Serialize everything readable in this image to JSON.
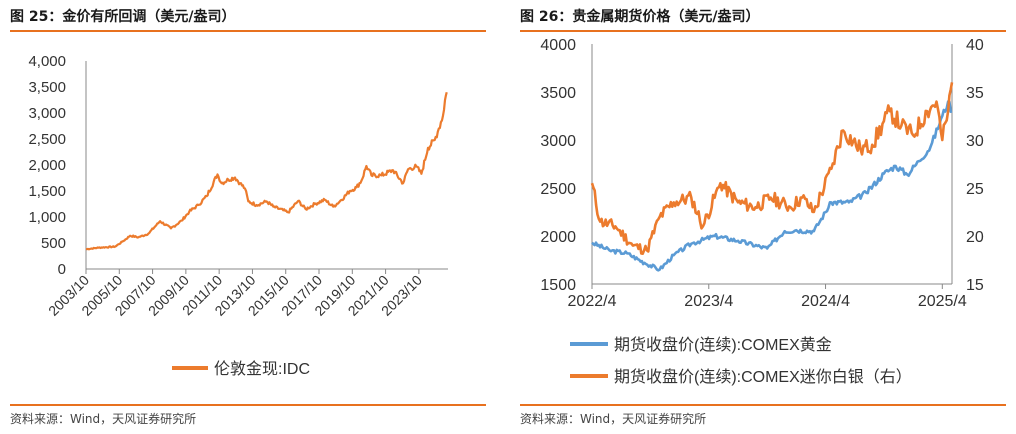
{
  "left": {
    "title": "图 25：金价有所回调（美元/盎司）",
    "source": "资料来源：Wind，天风证券研究所",
    "chart_data": {
      "type": "line",
      "title": "金价有所回调（美元/盎司）",
      "ylim": [
        0,
        4000
      ],
      "yticks": [
        0,
        500,
        1000,
        1500,
        2000,
        2500,
        3000,
        3500,
        4000
      ],
      "ytick_labels": [
        "0",
        "500",
        "1,000",
        "1,500",
        "2,000",
        "2,500",
        "3,000",
        "3,500",
        "4,000"
      ],
      "xlim": [
        2003.75,
        2025.5
      ],
      "xticks": [
        2003.75,
        2005.75,
        2007.75,
        2009.75,
        2011.75,
        2013.75,
        2015.75,
        2017.75,
        2019.75,
        2021.75,
        2023.75
      ],
      "xtick_labels": [
        "2003/10",
        "2005/10",
        "2007/10",
        "2009/10",
        "2011/10",
        "2013/10",
        "2015/10",
        "2017/10",
        "2019/10",
        "2021/10",
        "2023/10"
      ],
      "series": [
        {
          "name": "伦敦金现:IDC",
          "color": "#ec7b2d",
          "x": [
            2003.75,
            2004.5,
            2005.5,
            2006.0,
            2006.4,
            2006.9,
            2007.5,
            2008.2,
            2008.85,
            2009.5,
            2009.95,
            2010.5,
            2011.0,
            2011.65,
            2011.9,
            2012.3,
            2012.7,
            2013.0,
            2013.3,
            2013.5,
            2014.0,
            2014.6,
            2015.0,
            2015.9,
            2016.5,
            2016.95,
            2017.5,
            2018.1,
            2018.6,
            2019.0,
            2019.6,
            2020.0,
            2020.3,
            2020.6,
            2020.9,
            2021.5,
            2022.2,
            2022.8,
            2023.1,
            2023.6,
            2023.9,
            2024.3,
            2024.7,
            2024.95,
            2025.2,
            2025.32,
            2025.42
          ],
          "y": [
            380,
            410,
            430,
            540,
            640,
            610,
            680,
            920,
            780,
            930,
            1100,
            1230,
            1400,
            1820,
            1650,
            1720,
            1760,
            1650,
            1550,
            1300,
            1230,
            1300,
            1200,
            1090,
            1310,
            1150,
            1250,
            1330,
            1200,
            1300,
            1500,
            1570,
            1700,
            1980,
            1800,
            1800,
            1900,
            1650,
            1920,
            1970,
            1830,
            2330,
            2480,
            2700,
            2950,
            3250,
            3400
          ]
        }
      ],
      "legend": [
        "伦敦金现:IDC"
      ],
      "legend_position": "bottom"
    }
  },
  "right": {
    "title": "图 26：贵金属期货价格（美元/盎司）",
    "source": "资料来源：Wind，天风证券研究所",
    "chart_data": {
      "type": "line",
      "title": "贵金属期货价格（美元/盎司）",
      "ylim_left": [
        1500,
        4000
      ],
      "ylim_right": [
        15,
        40
      ],
      "yticks_left": [
        1500,
        2000,
        2500,
        3000,
        3500,
        4000
      ],
      "yticks_left_labels": [
        "1500",
        "2000",
        "2500",
        "3000",
        "3500",
        "4000"
      ],
      "yticks_right": [
        15,
        20,
        25,
        30,
        35,
        40
      ],
      "yticks_right_labels": [
        "15",
        "20",
        "25",
        "30",
        "35",
        "40"
      ],
      "xlim": [
        2022.25,
        2025.333
      ],
      "xticks": [
        2022.25,
        2023.25,
        2024.25,
        2025.25
      ],
      "xtick_labels": [
        "2022/4",
        "2023/4",
        "2024/4",
        "2025/4"
      ],
      "series": [
        {
          "name": "期货收盘价(连续):COMEX黄金",
          "axis": "left",
          "color": "#5b9bd5",
          "x": [
            2022.25,
            2022.4,
            2022.55,
            2022.7,
            2022.83,
            2022.95,
            2023.1,
            2023.3,
            2023.5,
            2023.75,
            2023.9,
            2024.0,
            2024.15,
            2024.3,
            2024.45,
            2024.6,
            2024.75,
            2024.85,
            2024.95,
            2025.05,
            2025.15,
            2025.25,
            2025.3,
            2025.333
          ],
          "y": [
            1930,
            1850,
            1820,
            1720,
            1650,
            1800,
            1920,
            2000,
            1950,
            1870,
            2050,
            2060,
            2050,
            2350,
            2350,
            2450,
            2650,
            2730,
            2640,
            2780,
            2930,
            3250,
            3400,
            3300
          ]
        },
        {
          "name": "期货收盘价(连续):COMEX迷你白银（右）",
          "axis": "right",
          "color": "#ec7b2d",
          "x": [
            2022.25,
            2022.32,
            2022.45,
            2022.6,
            2022.72,
            2022.83,
            2022.95,
            2023.1,
            2023.2,
            2023.35,
            2023.5,
            2023.65,
            2023.78,
            2023.95,
            2024.05,
            2024.15,
            2024.3,
            2024.4,
            2024.55,
            2024.65,
            2024.8,
            2024.9,
            2025.0,
            2025.12,
            2025.2,
            2025.25,
            2025.3,
            2025.333
          ],
          "y": [
            25.5,
            21.5,
            21.0,
            19.0,
            18.5,
            22.0,
            23.5,
            24.0,
            21.0,
            25.5,
            23.5,
            23.0,
            24.0,
            23.0,
            24.0,
            22.5,
            27.0,
            31.0,
            29.0,
            29.5,
            33.0,
            31.5,
            30.5,
            33.0,
            34.0,
            30.0,
            33.0,
            36.0
          ]
        }
      ],
      "legend": [
        "期货收盘价(连续):COMEX黄金",
        "期货收盘价(连续):COMEX迷你白银（右）"
      ],
      "legend_position": "bottom"
    }
  }
}
